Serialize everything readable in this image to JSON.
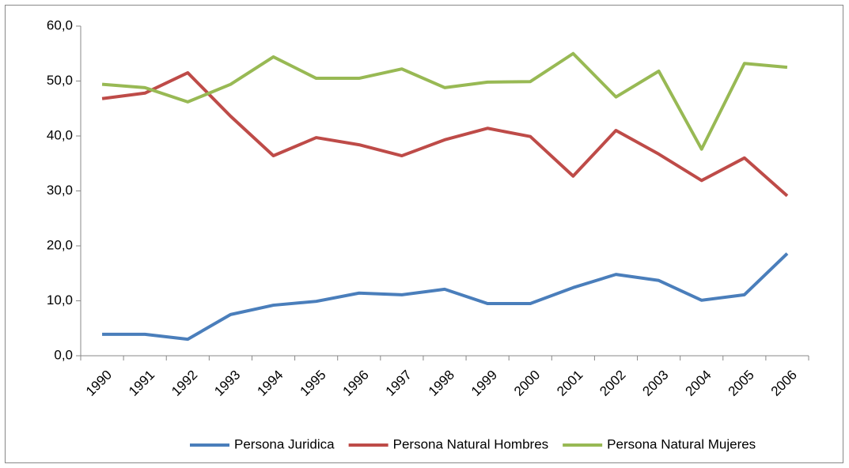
{
  "chart_data": {
    "type": "line",
    "categories": [
      "1990",
      "1991",
      "1992",
      "1993",
      "1994",
      "1995",
      "1996",
      "1997",
      "1998",
      "1999",
      "2000",
      "2001",
      "2002",
      "2003",
      "2004",
      "2005",
      "2006"
    ],
    "series": [
      {
        "name": "Persona Juridica",
        "color": "#4a7ebb",
        "values": [
          3.9,
          3.9,
          3.0,
          7.5,
          9.2,
          9.9,
          11.4,
          11.1,
          12.1,
          9.5,
          9.5,
          12.4,
          14.8,
          13.7,
          10.1,
          11.1,
          18.6
        ]
      },
      {
        "name": "Persona Natural Hombres",
        "color": "#be4b48",
        "values": [
          46.8,
          47.8,
          51.5,
          43.6,
          36.4,
          39.7,
          38.4,
          36.4,
          39.3,
          41.4,
          39.9,
          32.7,
          41.0,
          36.7,
          31.9,
          36.0,
          29.1
        ]
      },
      {
        "name": "Persona Natural Mujeres",
        "color": "#98b954",
        "values": [
          49.4,
          48.8,
          46.2,
          49.4,
          54.4,
          50.5,
          50.5,
          52.2,
          48.8,
          49.8,
          49.9,
          55.0,
          47.1,
          51.8,
          37.6,
          53.2,
          52.5
        ]
      }
    ],
    "ylim": [
      0,
      60
    ],
    "yticks": [
      {
        "value": 0,
        "label": "0,0"
      },
      {
        "value": 10,
        "label": "10,0"
      },
      {
        "value": 20,
        "label": "20,0"
      },
      {
        "value": 30,
        "label": "30,0"
      },
      {
        "value": 40,
        "label": "40,0"
      },
      {
        "value": 50,
        "label": "50,0"
      },
      {
        "value": 60,
        "label": "60,0"
      }
    ],
    "grid": false,
    "legend": "bottom"
  }
}
